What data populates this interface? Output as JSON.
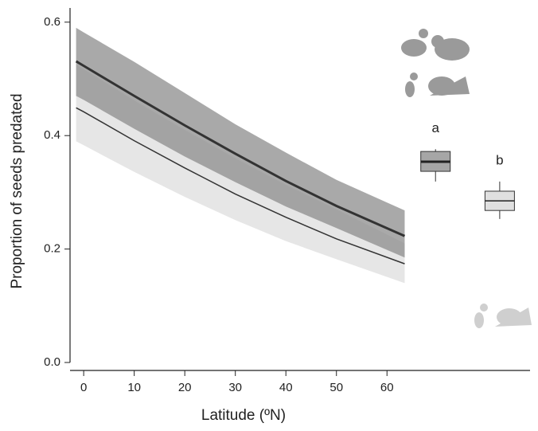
{
  "chart_data": {
    "type": "line",
    "x_label": "Latitude (ºN)",
    "y_label": "Proportion of seeds predated",
    "xlim": [
      -2.7,
      88.3
    ],
    "xticks": [
      0,
      10,
      20,
      30,
      40,
      50,
      60
    ],
    "ylim": [
      0,
      0.625
    ],
    "yticks": [
      {
        "value": 0,
        "label": "0.0"
      },
      0.2,
      0.4,
      0.6
    ],
    "x": [
      -1.5,
      0,
      10,
      20,
      30,
      40,
      50,
      63.5
    ],
    "series": [
      {
        "color": "#e6e6e6",
        "line_color": "#333333",
        "line_width": 1.5,
        "values": [
          0.449,
          0.442,
          0.391,
          0.343,
          0.297,
          0.256,
          0.218,
          0.174
        ],
        "lower": [
          0.39,
          0.383,
          0.336,
          0.292,
          0.251,
          0.214,
          0.182,
          0.14
        ],
        "upper": [
          0.525,
          0.517,
          0.462,
          0.41,
          0.36,
          0.313,
          0.27,
          0.21
        ]
      },
      {
        "color": "#8c8c8c",
        "line_color": "#333333",
        "line_width": 3,
        "values": [
          0.531,
          0.523,
          0.47,
          0.418,
          0.368,
          0.32,
          0.276,
          0.223
        ],
        "lower": [
          0.47,
          0.463,
          0.412,
          0.363,
          0.318,
          0.275,
          0.237,
          0.185
        ],
        "upper": [
          0.59,
          0.582,
          0.53,
          0.475,
          0.42,
          0.37,
          0.322,
          0.268
        ]
      }
    ],
    "boxes": [
      {
        "label": "a",
        "x": 69.6,
        "whislo": 0.319,
        "q1": 0.337,
        "med": 0.354,
        "q3": 0.372,
        "whishi": 0.376,
        "color": "#a6a6a6"
      },
      {
        "label": "b",
        "x": 82.3,
        "whislo": 0.253,
        "q1": 0.268,
        "med": 0.285,
        "q3": 0.302,
        "whishi": 0.319,
        "color": "#e0e0e0"
      }
    ]
  }
}
